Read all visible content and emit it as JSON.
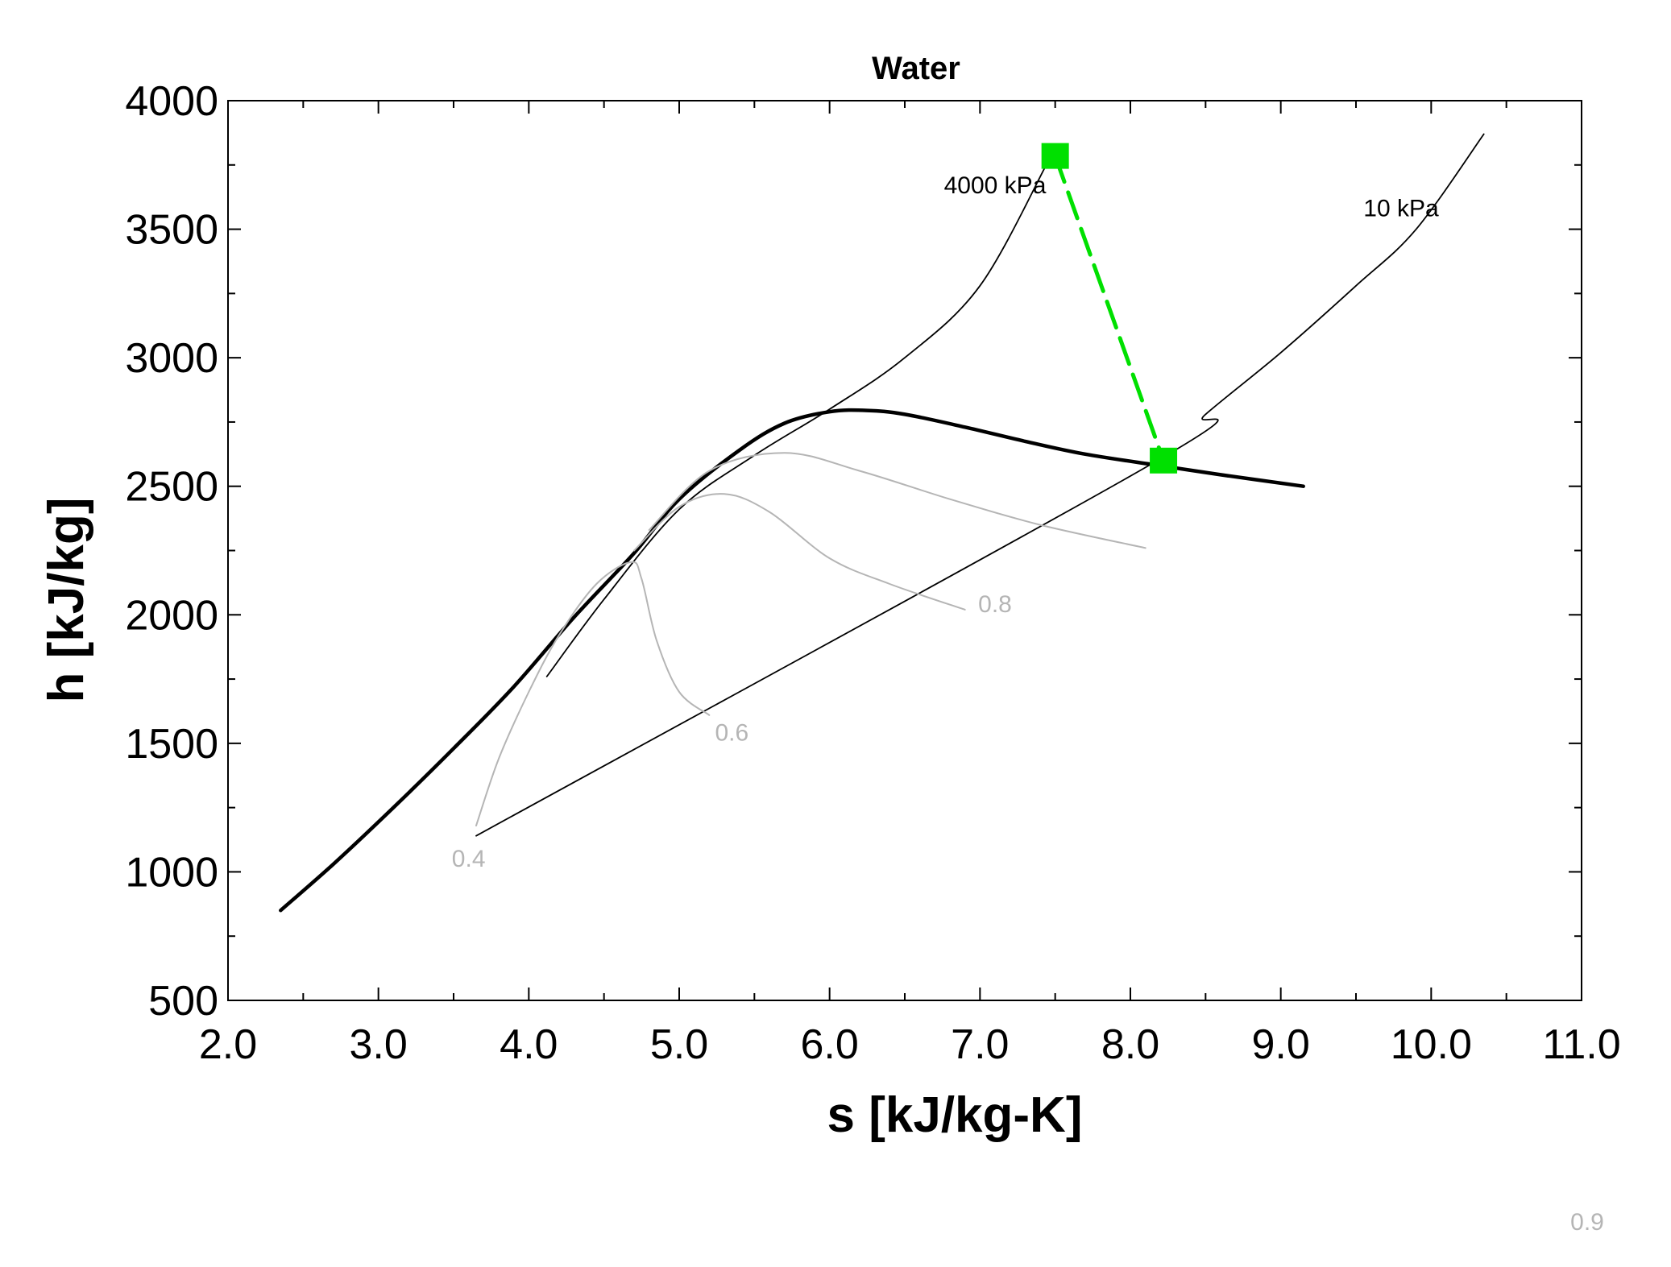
{
  "chart_data": {
    "type": "line",
    "title": "Water",
    "xlabel": "s [kJ/kg-K]",
    "ylabel": "h [kJ/kg]",
    "xlim": [
      2.0,
      11.0
    ],
    "ylim": [
      500,
      4000
    ],
    "x_ticks": [
      "2.0",
      "3.0",
      "4.0",
      "5.0",
      "6.0",
      "7.0",
      "8.0",
      "9.0",
      "10.0",
      "11.0"
    ],
    "y_ticks": [
      "500",
      "1000",
      "1500",
      "2000",
      "2500",
      "3000",
      "3500",
      "4000"
    ],
    "grid": false,
    "colors": {
      "dome": "#000000",
      "isobar": "#000000",
      "quality": "#b5b5b5",
      "process": "#00e000"
    },
    "series": [
      {
        "kind": "saturation-dome",
        "points": [
          [
            2.35,
            850
          ],
          [
            2.7,
            1030
          ],
          [
            3.1,
            1250
          ],
          [
            3.5,
            1480
          ],
          [
            3.9,
            1720
          ],
          [
            4.3,
            1990
          ],
          [
            4.7,
            2240
          ],
          [
            5.0,
            2450
          ],
          [
            5.4,
            2640
          ],
          [
            5.7,
            2745
          ],
          [
            6.0,
            2790
          ],
          [
            6.25,
            2795
          ],
          [
            6.5,
            2780
          ],
          [
            6.9,
            2730
          ],
          [
            7.3,
            2675
          ],
          [
            7.7,
            2625
          ],
          [
            8.2,
            2580
          ],
          [
            8.6,
            2545
          ],
          [
            9.15,
            2500
          ]
        ]
      },
      {
        "kind": "isobar",
        "points": [
          [
            4.12,
            1760
          ],
          [
            4.5,
            2060
          ],
          [
            5.0,
            2410
          ],
          [
            5.5,
            2620
          ],
          [
            6.0,
            2800
          ],
          [
            6.5,
            3000
          ],
          [
            7.0,
            3280
          ],
          [
            7.45,
            3760
          ]
        ]
      },
      {
        "kind": "isobar",
        "points": [
          [
            3.65,
            1140
          ],
          [
            8.15,
            2590
          ],
          [
            8.5,
            2780
          ],
          [
            9.0,
            3020
          ],
          [
            9.5,
            3280
          ],
          [
            9.9,
            3500
          ],
          [
            10.35,
            3870
          ]
        ]
      },
      {
        "kind": "quality",
        "points": [
          [
            3.65,
            1180
          ],
          [
            3.8,
            1440
          ],
          [
            4.0,
            1700
          ],
          [
            4.2,
            1920
          ],
          [
            4.45,
            2120
          ],
          [
            4.68,
            2205
          ],
          [
            4.75,
            2140
          ],
          [
            4.85,
            1900
          ],
          [
            5.0,
            1700
          ],
          [
            5.2,
            1610
          ]
        ]
      },
      {
        "kind": "quality",
        "points": [
          [
            4.7,
            2250
          ],
          [
            5.0,
            2420
          ],
          [
            5.3,
            2470
          ],
          [
            5.6,
            2400
          ],
          [
            6.0,
            2220
          ],
          [
            6.4,
            2120
          ],
          [
            6.9,
            2020
          ]
        ]
      },
      {
        "kind": "quality",
        "points": [
          [
            4.8,
            2330
          ],
          [
            5.2,
            2560
          ],
          [
            5.7,
            2630
          ],
          [
            6.2,
            2560
          ],
          [
            6.8,
            2450
          ],
          [
            7.4,
            2350
          ],
          [
            8.1,
            2260
          ]
        ]
      },
      {
        "kind": "process",
        "points": [
          [
            7.5,
            3785
          ],
          [
            8.22,
            2600
          ]
        ]
      }
    ],
    "curve_labels": [
      {
        "text": "4000 kPa",
        "x": 7.1,
        "y": 3640,
        "color": "#000000"
      },
      {
        "text": "10 kPa",
        "x": 9.8,
        "y": 3550,
        "color": "#000000"
      },
      {
        "text": "0.4",
        "x": 3.6,
        "y": 1020,
        "color": "#b5b5b5"
      },
      {
        "text": "0.6",
        "x": 5.35,
        "y": 1510,
        "color": "#b5b5b5"
      },
      {
        "text": "0.8",
        "x": 7.1,
        "y": 2010,
        "color": "#b5b5b5"
      }
    ],
    "state_points": [
      [
        7.5,
        3785
      ],
      [
        8.22,
        2600
      ]
    ]
  },
  "footer": {
    "number": "0.9"
  }
}
